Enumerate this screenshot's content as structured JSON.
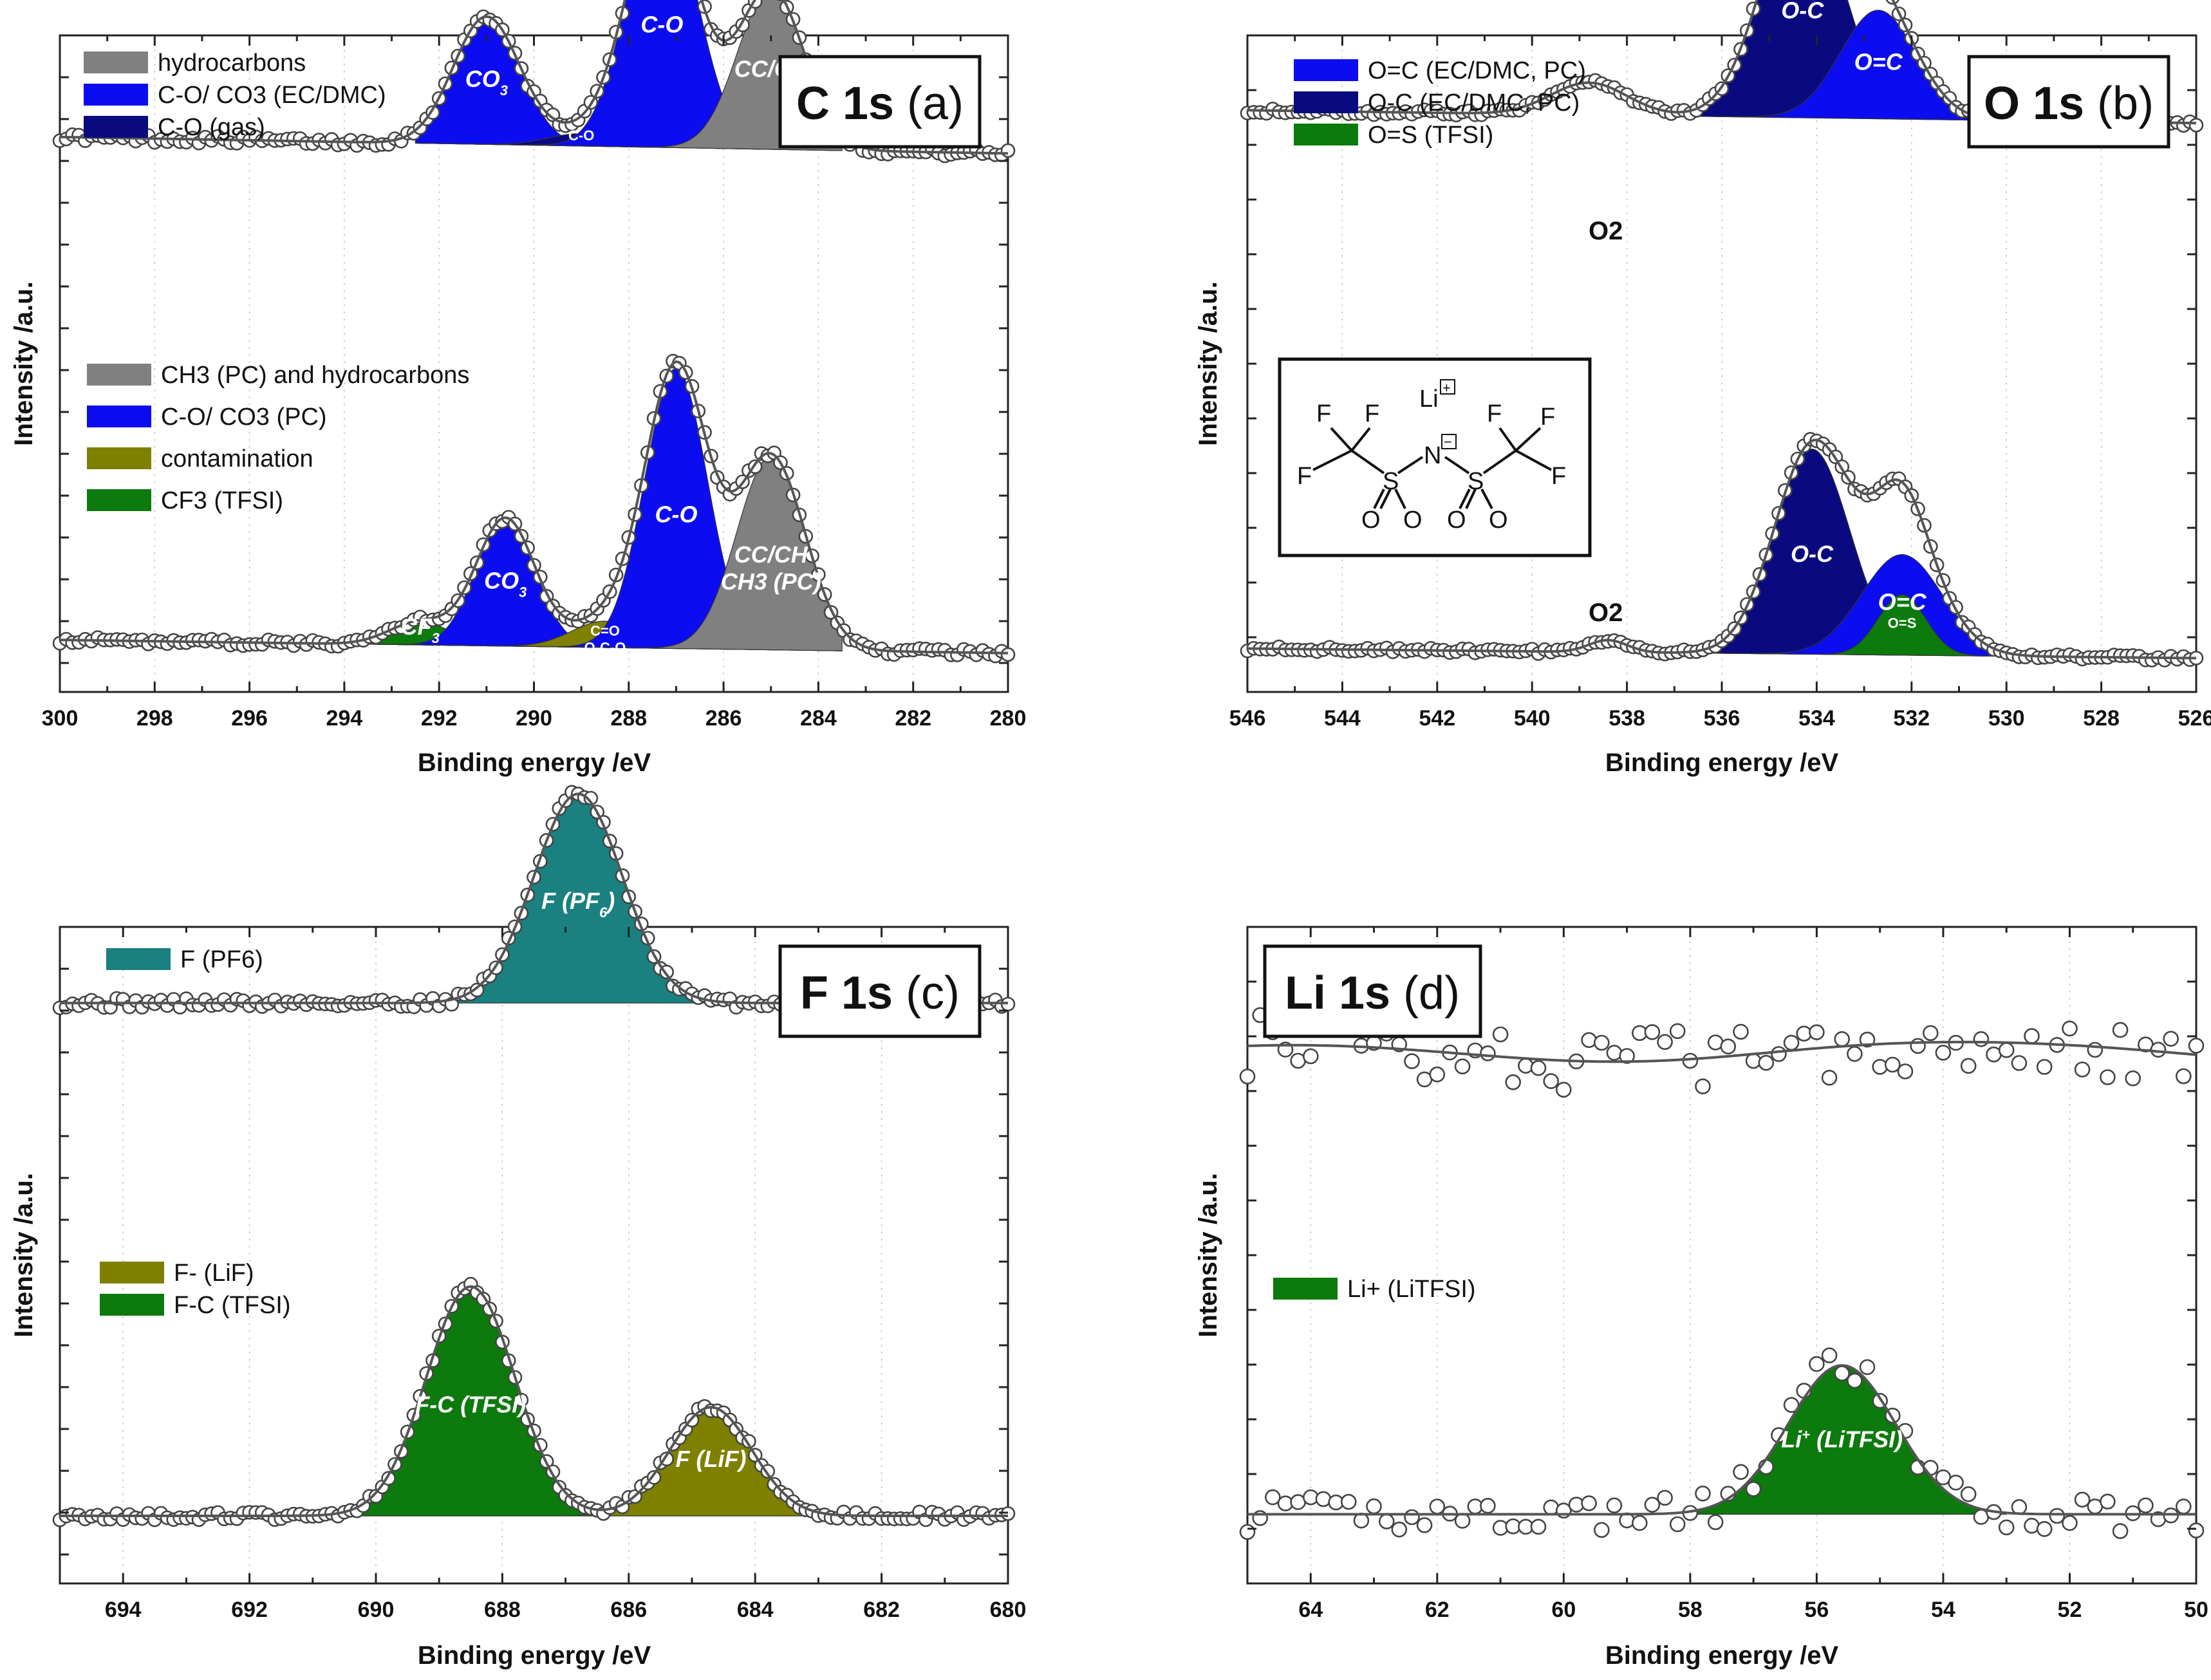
{
  "chart_data": [
    {
      "type": "line",
      "id": "c1s",
      "title": "C 1s",
      "title_suffix": "(a)",
      "xlabel": "Binding energy /eV",
      "ylabel": "Intensity /a.u.",
      "xlim": [
        300,
        280
      ],
      "xticks": [
        300,
        298,
        296,
        294,
        292,
        290,
        288,
        286,
        284,
        282,
        280
      ],
      "spectra": [
        {
          "name": "top",
          "baseline": 2.3,
          "slope": 0.01,
          "mid": 290,
          "noise": 0.045,
          "fit_range": [
            292.5,
            283.5
          ],
          "components": [
            {
              "label": "CO3",
              "color": "#0c0cf0",
              "center": 291.0,
              "height": 1.55,
              "width": 0.7,
              "label_main": "CO",
              "label_sub": "3"
            },
            {
              "label": "C-O (gas)",
              "color": "#0a0a80",
              "center": 289.0,
              "height": 0.15,
              "width": 0.7,
              "label_main": "C-O",
              "label_small": true
            },
            {
              "label": "C-O",
              "color": "#0c0cf0",
              "center": 287.3,
              "height": 3.1,
              "width": 0.72,
              "label_main": "C-O"
            },
            {
              "label": "CC/CH",
              "color": "#808080",
              "center": 285.0,
              "height": 1.95,
              "width": 0.7,
              "label_main": "CC/CH"
            }
          ]
        },
        {
          "name": "bottom",
          "baseline": 0.2,
          "slope": 0.008,
          "mid": 290,
          "noise": 0.04,
          "fit_range": [
            293.5,
            283.5
          ],
          "components": [
            {
              "label": "CF3",
              "color": "#0c7a0c",
              "center": 292.4,
              "height": 0.28,
              "width": 0.65,
              "label_main": "CF",
              "label_sub": "3"
            },
            {
              "label": "CO3",
              "color": "#0c0cf0",
              "center": 290.6,
              "height": 1.55,
              "width": 0.62,
              "label_main": "CO",
              "label_sub": "3"
            },
            {
              "label": "C=O O-C-O",
              "color": "#7f7f00",
              "center": 288.5,
              "height": 0.32,
              "width": 0.7,
              "label_main": "C=O",
              "label_line2": "O-C-O",
              "label_small": true
            },
            {
              "label": "C-O",
              "color": "#0c0cf0",
              "center": 287.0,
              "height": 3.4,
              "width": 0.66,
              "label_main": "C-O"
            },
            {
              "label": "CC/CH CH3 (PC)",
              "color": "#808080",
              "center": 285.0,
              "height": 2.35,
              "width": 0.72,
              "label_main": "CC/CH",
              "label_line2": "CH3 (PC)"
            }
          ]
        }
      ],
      "legends": [
        {
          "entries": [
            {
              "text": "hydrocarbons",
              "color": "#808080"
            },
            {
              "text": "C-O/ CO3 (EC/DMC)",
              "color": "#0c0cf0"
            },
            {
              "text": "C-O (gas)",
              "color": "#0a0a80"
            }
          ]
        },
        {
          "entries": [
            {
              "text": "CH3 (PC) and hydrocarbons",
              "color": "#808080"
            },
            {
              "text": "C-O/ CO3 (PC)",
              "color": "#0c0cf0"
            },
            {
              "text": "contamination",
              "color": "#7f7f00"
            },
            {
              "text": "CF3 (TFSI)",
              "color": "#0c7a0c"
            }
          ]
        }
      ]
    },
    {
      "type": "line",
      "id": "o1s",
      "title": "O 1s",
      "title_suffix": "(b)",
      "xlabel": "Binding energy /eV",
      "ylabel": "Intensity /a.u.",
      "xlim": [
        546,
        526
      ],
      "xticks": [
        546,
        544,
        542,
        540,
        538,
        536,
        534,
        532,
        530,
        528,
        526
      ],
      "annotations": [
        "O2",
        "O2"
      ],
      "spectra": [
        {
          "name": "top",
          "baseline": 2.55,
          "slope": 0.008,
          "mid": 536,
          "noise": 0.035,
          "o2": {
            "center": 538.8,
            "height": 0.4,
            "width": 0.8
          },
          "fit_range": [
            537,
            530.5
          ],
          "components": [
            {
              "label": "O-C",
              "color": "#0a0a80",
              "center": 534.3,
              "height": 2.75,
              "width": 0.85,
              "label_main": "O-C"
            },
            {
              "label": "O=C",
              "color": "#0c0cf0",
              "center": 532.7,
              "height": 1.35,
              "width": 0.8,
              "label_main": "O=C"
            }
          ]
        },
        {
          "name": "bottom",
          "baseline": 0.2,
          "slope": 0.006,
          "mid": 536,
          "noise": 0.03,
          "o2": {
            "center": 538.4,
            "height": 0.15,
            "width": 0.4
          },
          "fit_range": [
            536.5,
            530
          ],
          "components": [
            {
              "label": "O-C",
              "color": "#0a0a80",
              "center": 534.1,
              "height": 2.55,
              "width": 0.8,
              "label_main": "O-C"
            },
            {
              "label": "O=C",
              "color": "#0c0cf0",
              "center": 532.2,
              "height": 1.25,
              "width": 0.85,
              "label_main": "O=C"
            },
            {
              "label": "O=S",
              "color": "#0c7a0c",
              "center": 532.2,
              "height": 0.75,
              "width": 0.5,
              "label_main": "O=S",
              "label_small": true
            }
          ]
        }
      ],
      "legends": [
        {
          "entries": [
            {
              "text": "O=C (EC/DMC, PC)",
              "color": "#0c0cf0"
            },
            {
              "text": "O-C (EC/DMC, PC)",
              "color": "#0a0a80"
            },
            {
              "text": "O=S (TFSI)",
              "color": "#0c7a0c"
            }
          ]
        }
      ],
      "structure": {
        "atoms": [
          "F",
          "F",
          "F",
          "S",
          "O",
          "O",
          "N",
          "S",
          "O",
          "O",
          "F",
          "F",
          "F"
        ],
        "cation": "Li",
        "cation_charge": "+",
        "anion_charge": "−"
      }
    },
    {
      "type": "line",
      "id": "f1s",
      "title": "F 1s",
      "title_suffix": "(c)",
      "xlabel": "Binding energy /eV",
      "ylabel": "Intensity /a.u.",
      "xlim": [
        695,
        680
      ],
      "xticks": [
        694,
        692,
        690,
        688,
        686,
        684,
        682,
        680
      ],
      "spectra": [
        {
          "name": "top",
          "baseline": 2.35,
          "slope": 0.0,
          "mid": 687,
          "noise": 0.06,
          "fit_range": [
            689.2,
            684.0
          ],
          "components": [
            {
              "label": "F (PF6)",
              "color": "#1a8080",
              "center": 686.8,
              "height": 2.6,
              "width": 0.7,
              "label_main": "F (PF",
              "label_sub": "6",
              "label_tail": ")"
            }
          ]
        },
        {
          "name": "bottom",
          "baseline": 0.2,
          "slope": 0.0,
          "mid": 687,
          "noise": 0.05,
          "fit_range": [
            691,
            682.8
          ],
          "components": [
            {
              "label": "F-C (TFSI)",
              "color": "#0c7a0c",
              "center": 688.5,
              "height": 2.85,
              "width": 0.7,
              "label_main": "F-C (TFSI)"
            },
            {
              "label": "F (LiF)",
              "color": "#7f7f00",
              "center": 684.7,
              "height": 1.35,
              "width": 0.65,
              "label_main": "F",
              "label_tail": " (LiF)"
            }
          ]
        }
      ],
      "legends": [
        {
          "entries": [
            {
              "text": "F (PF6)",
              "color": "#1a8080"
            }
          ]
        },
        {
          "entries": [
            {
              "text": "F- (LiF)",
              "color": "#7f7f00"
            },
            {
              "text": "F-C (TFSI)",
              "color": "#0c7a0c"
            }
          ]
        }
      ]
    },
    {
      "type": "line",
      "id": "li1s",
      "title": "Li 1s",
      "title_suffix": "(d)",
      "xlabel": "Binding energy /eV",
      "ylabel": "Intensity /a.u.",
      "xlim": [
        65,
        50
      ],
      "xticks": [
        64,
        62,
        60,
        58,
        56,
        54,
        52,
        50
      ],
      "spectra": [
        {
          "name": "top",
          "baseline": 3.05,
          "slope": 0.0,
          "mid": 57,
          "noise": 0.38,
          "wave": true,
          "fit_range": null,
          "components": []
        },
        {
          "name": "bottom",
          "baseline": 0.1,
          "slope": 0.0,
          "mid": 57,
          "noise": 0.22,
          "fit_range": [
            58,
            53
          ],
          "components": [
            {
              "label": "Li+ (LiTFSI)",
              "color": "#0c7a0c",
              "center": 55.6,
              "height": 1.85,
              "width": 0.85,
              "label_main": "Li",
              "label_sup": "+",
              "label_tail": " (LiTFSI)"
            }
          ]
        }
      ],
      "legends": [
        {
          "entries": [
            {
              "text": "Li+ (LiTFSI)",
              "color": "#0c7a0c"
            }
          ]
        }
      ]
    }
  ]
}
